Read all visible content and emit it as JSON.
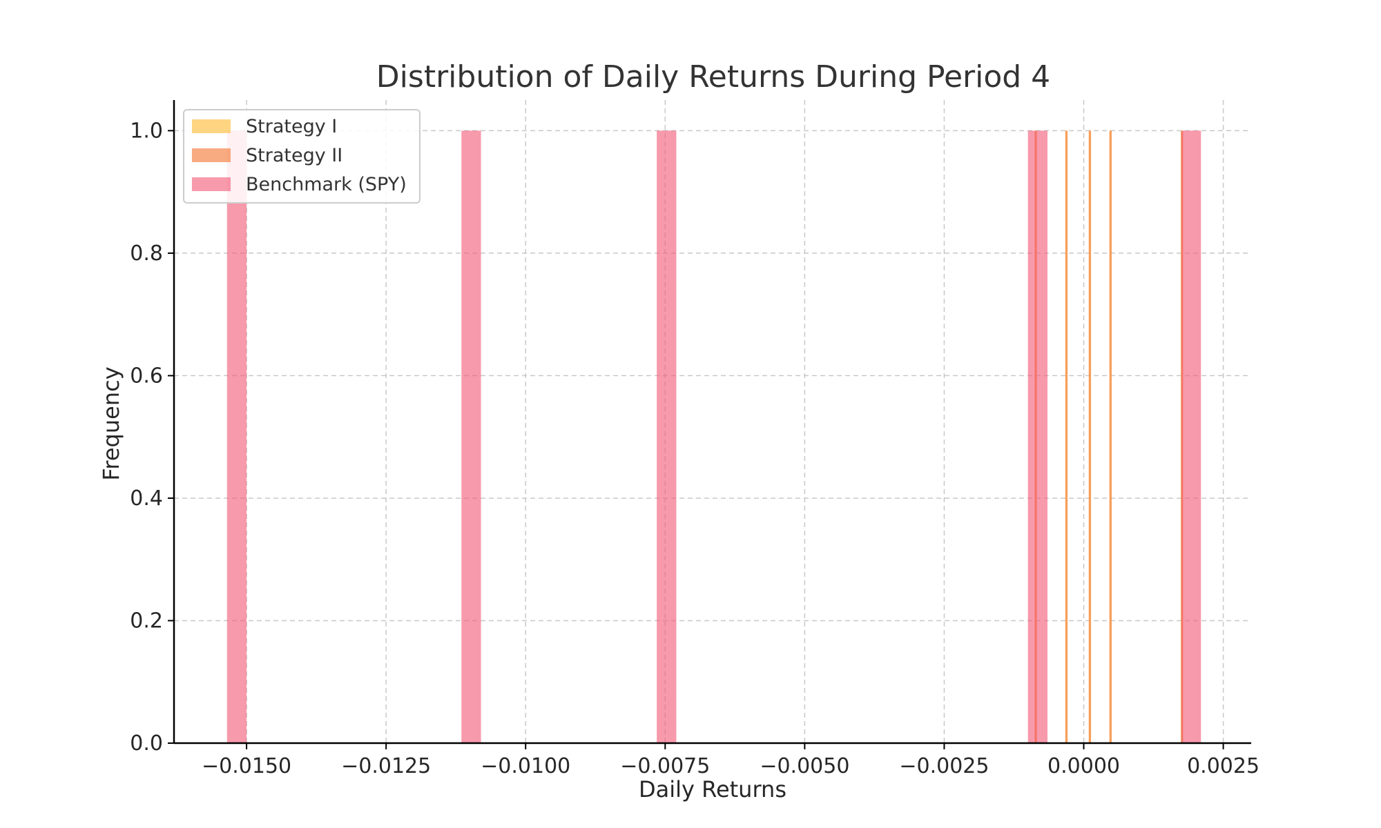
{
  "chart_data": {
    "type": "histogram",
    "title": "Distribution of Daily Returns During Period 4",
    "xlabel": "Daily Returns",
    "ylabel": "Frequency",
    "xlim": [
      -0.0163,
      0.003
    ],
    "ylim": [
      0,
      1.05
    ],
    "x_ticks": [
      -0.015,
      -0.0125,
      -0.01,
      -0.0075,
      -0.005,
      -0.0025,
      0.0,
      0.0025
    ],
    "x_tick_labels": [
      "−0.0150",
      "−0.0125",
      "−0.0100",
      "−0.0075",
      "−0.0050",
      "−0.0025",
      "0.0000",
      "0.0025"
    ],
    "y_ticks": [
      0.0,
      0.2,
      0.4,
      0.6,
      0.8,
      1.0
    ],
    "y_tick_labels": [
      "0.0",
      "0.2",
      "0.4",
      "0.6",
      "0.8",
      "1.0"
    ],
    "grid": true,
    "legend_position": "top-left",
    "series": [
      {
        "name": "Strategy I",
        "color": "#ffc34d",
        "opacity": 0.7,
        "bars": [
          {
            "x0": -0.00088,
            "x1": -0.00084,
            "count": 1
          },
          {
            "x0": -0.00033,
            "x1": -0.00029,
            "count": 1
          },
          {
            "x0": 9e-05,
            "x1": 0.00013,
            "count": 1
          },
          {
            "x0": 0.00046,
            "x1": 0.0005,
            "count": 1
          },
          {
            "x0": 0.00174,
            "x1": 0.00178,
            "count": 1
          }
        ]
      },
      {
        "name": "Strategy II",
        "color": "#f5864a",
        "opacity": 0.7,
        "bars": [
          {
            "x0": -0.00088,
            "x1": -0.00084,
            "count": 1
          },
          {
            "x0": -0.00033,
            "x1": -0.00029,
            "count": 1
          },
          {
            "x0": 9e-05,
            "x1": 0.00013,
            "count": 1
          },
          {
            "x0": 0.00046,
            "x1": 0.0005,
            "count": 1
          },
          {
            "x0": 0.00174,
            "x1": 0.00178,
            "count": 1
          }
        ]
      },
      {
        "name": "Benchmark (SPY)",
        "color": "#f25c78",
        "opacity": 0.62,
        "bars": [
          {
            "x0": -0.01535,
            "x1": -0.015,
            "count": 1
          },
          {
            "x0": -0.01115,
            "x1": -0.0108,
            "count": 1
          },
          {
            "x0": -0.00765,
            "x1": -0.0073,
            "count": 1
          },
          {
            "x0": -0.001,
            "x1": -0.00065,
            "count": 1
          },
          {
            "x0": 0.00175,
            "x1": 0.0021,
            "count": 1
          }
        ]
      }
    ]
  }
}
